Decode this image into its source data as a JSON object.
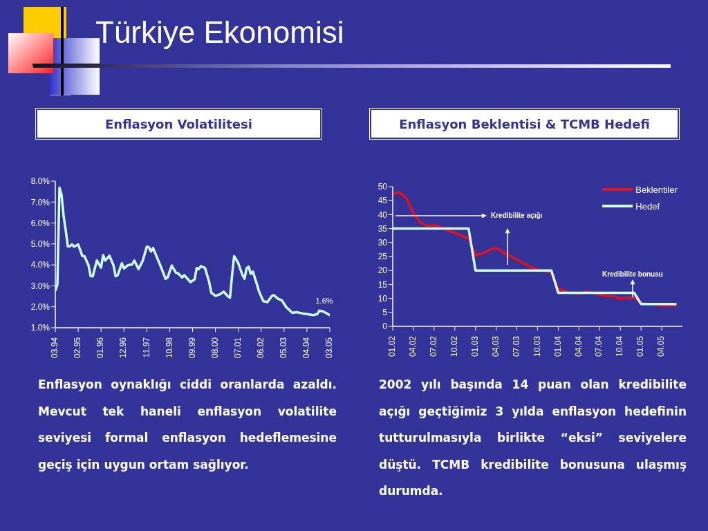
{
  "chart_data": [
    {
      "type": "other",
      "title": "Türkiye Ekonomisi"
    },
    {
      "type": "line",
      "title": "Enflasyon Volatilitesi",
      "color": "#ccffff",
      "x": [
        "1994-03",
        "1994-04",
        "1994-05",
        "1994-06",
        "1994-07",
        "1994-08",
        "1994-09",
        "1994-10",
        "1994-11",
        "1994-12",
        "1995-02",
        "1995-04",
        "1995-05",
        "1995-07",
        "1995-08",
        "1995-09",
        "1995-11",
        "1996-01",
        "1996-02",
        "1996-03",
        "1996-05",
        "1996-07",
        "1996-08",
        "1996-09",
        "1996-11",
        "1996-12",
        "1997-02",
        "1997-04",
        "1997-05",
        "1997-07",
        "1997-09",
        "1997-11",
        "1997-12",
        "1998-01",
        "1998-02",
        "1998-06",
        "1998-08",
        "1998-09",
        "1998-11",
        "1999-01",
        "1999-02",
        "1999-04",
        "1999-05",
        "1999-07",
        "1999-08",
        "1999-10",
        "1999-11",
        "1999-12",
        "2000-01",
        "2000-03",
        "2000-05",
        "2000-06",
        "2000-08",
        "2000-10",
        "2000-12",
        "2001-02",
        "2001-03",
        "2001-04",
        "2001-05",
        "2001-07",
        "2001-09",
        "2001-10",
        "2001-11",
        "2001-12",
        "2002-01",
        "2002-02",
        "2002-04",
        "2002-05",
        "2002-07",
        "2002-09",
        "2002-11",
        "2002-12",
        "2003-02",
        "2003-04",
        "2003-06",
        "2003-09",
        "2003-11",
        "2004-02",
        "2004-04",
        "2004-07",
        "2004-09",
        "2004-10",
        "2004-12",
        "2005-03"
      ],
      "values": [
        2.78,
        3.06,
        7.69,
        7.35,
        6.33,
        5.66,
        4.89,
        4.89,
        4.98,
        4.87,
        4.98,
        4.42,
        4.42,
        3.97,
        3.46,
        3.46,
        4.21,
        3.87,
        4.47,
        4.21,
        4.44,
        3.97,
        3.46,
        3.51,
        4.08,
        3.83,
        3.99,
        4.02,
        4.21,
        3.8,
        4.19,
        4.87,
        4.84,
        4.64,
        4.81,
        3.85,
        3.34,
        3.4,
        3.97,
        3.63,
        3.6,
        3.4,
        3.51,
        3.29,
        3.18,
        3.31,
        3.85,
        3.8,
        3.94,
        3.85,
        3.18,
        2.67,
        2.52,
        2.59,
        2.72,
        2.5,
        2.44,
        3.51,
        4.42,
        4.08,
        3.51,
        3.34,
        3.85,
        3.91,
        3.57,
        3.68,
        3.06,
        2.72,
        2.27,
        2.22,
        2.5,
        2.56,
        2.39,
        2.3,
        1.99,
        1.71,
        1.74,
        1.68,
        1.65,
        1.6,
        1.65,
        1.82,
        1.77,
        1.6
      ],
      "xlim": [
        "1994-03",
        "2005-03"
      ],
      "xticks": [
        {
          "value": "1994-03",
          "label": "03.94"
        },
        {
          "value": "1995-02",
          "label": "02.95"
        },
        {
          "value": "1996-01",
          "label": "01.96"
        },
        {
          "value": "1996-12",
          "label": "12.96"
        },
        {
          "value": "1997-11",
          "label": "11.97"
        },
        {
          "value": "1998-10",
          "label": "10.98"
        },
        {
          "value": "1999-09",
          "label": "09.99"
        },
        {
          "value": "2000-08",
          "label": "08.00"
        },
        {
          "value": "2001-07",
          "label": "07.01"
        },
        {
          "value": "2002-06",
          "label": "06.02"
        },
        {
          "value": "2003-05",
          "label": "05.03"
        },
        {
          "value": "2004-04",
          "label": "04.04"
        },
        {
          "value": "2005-03",
          "label": "03.05"
        }
      ],
      "ylim": [
        1,
        8
      ],
      "yticks": [
        {
          "value": 1,
          "label": "1.0%"
        },
        {
          "value": 2,
          "label": "2.0%"
        },
        {
          "value": 3,
          "label": "3.0%"
        },
        {
          "value": 4,
          "label": "4.0%"
        },
        {
          "value": 5,
          "label": "5.0%"
        },
        {
          "value": 6,
          "label": "6.0%"
        },
        {
          "value": 7,
          "label": "7.0%"
        },
        {
          "value": 8,
          "label": "8.0%"
        }
      ],
      "annotations": [
        {
          "text": "1.6%",
          "x": "2005-03",
          "y": 1.6
        },
        "Enflasyon oynaklığı ciddi oranlarda azaldı. Mevcut tek haneli enflasyon volatilite seviyesi formal enflasyon hedeflemesine geçiş için uygun ortam sağlıyor."
      ]
    },
    {
      "type": "line",
      "title": "Enflasyon Beklentisi & TCMB Hedefi",
      "x": [
        "2002-01",
        "2002-02",
        "2002-03",
        "2002-04",
        "2002-05",
        "2002-06",
        "2002-07",
        "2002-08",
        "2002-09",
        "2002-10",
        "2002-11",
        "2002-12",
        "2003-01",
        "2003-02",
        "2003-03",
        "2003-04",
        "2003-05",
        "2003-06",
        "2003-07",
        "2003-08",
        "2003-09",
        "2003-10",
        "2003-11",
        "2003-12",
        "2004-01",
        "2004-02",
        "2004-03",
        "2004-04",
        "2004-05",
        "2004-06",
        "2004-07",
        "2004-08",
        "2004-09",
        "2004-10",
        "2004-11",
        "2004-12",
        "2005-01",
        "2005-02",
        "2005-03",
        "2005-04",
        "2005-05",
        "2005-06"
      ],
      "series": [
        {
          "name": "Beklentiler",
          "color": "#e8101a",
          "values": [
            47.5,
            48,
            45.8,
            40.5,
            37.2,
            36,
            36.2,
            35.4,
            34.3,
            33.5,
            32.4,
            31.6,
            25.5,
            26.1,
            27.3,
            28.2,
            26.5,
            25.3,
            23.9,
            22.6,
            21.2,
            20.4,
            19.8,
            19.3,
            13.5,
            12.6,
            11.9,
            11.6,
            12.6,
            11.9,
            11.3,
            10.9,
            10.8,
            9.9,
            10.3,
            10.3,
            8.5,
            8,
            7.8,
            7.5,
            7.4,
            7.5
          ]
        },
        {
          "name": "Hedef",
          "color": "#ccffff",
          "x": [
            "2002-01",
            "2002-12",
            "2003-01",
            "2003-12",
            "2004-01",
            "2004-12",
            "2005-01",
            "2005-06"
          ],
          "values": [
            35,
            35,
            20,
            20,
            12,
            12,
            8,
            8
          ]
        }
      ],
      "xlim": [
        "2002-01",
        "2005-07"
      ],
      "xticks": [
        {
          "value": "2002-01",
          "label": "01.02"
        },
        {
          "value": "2002-04",
          "label": "04.02"
        },
        {
          "value": "2002-07",
          "label": "07.02"
        },
        {
          "value": "2002-10",
          "label": "10.02"
        },
        {
          "value": "2003-01",
          "label": "01.03"
        },
        {
          "value": "2003-04",
          "label": "04.03"
        },
        {
          "value": "2003-07",
          "label": "07.03"
        },
        {
          "value": "2003-10",
          "label": "10.03"
        },
        {
          "value": "2004-01",
          "label": "01.04"
        },
        {
          "value": "2004-04",
          "label": "04.04"
        },
        {
          "value": "2004-07",
          "label": "07.04"
        },
        {
          "value": "2004-10",
          "label": "10.04"
        },
        {
          "value": "2005-01",
          "label": "01.05"
        },
        {
          "value": "2005-04",
          "label": "04.05"
        }
      ],
      "ylim": [
        0,
        50
      ],
      "yticks": [
        0,
        5,
        10,
        15,
        20,
        25,
        30,
        35,
        40,
        45,
        50
      ],
      "legend": "top right",
      "annotations": [
        "Kredibilite açığı",
        "Kredibilite bonusu",
        "2002 yılı başında 14 puan olan kredibilite açığı geçtiğimiz 3 yılda enflasyon hedefinin tutturulmasıyla birlikte “eksi” seviyelere düştü. TCMB kredibilite bonusuna ulaşmış durumda."
      ]
    }
  ]
}
